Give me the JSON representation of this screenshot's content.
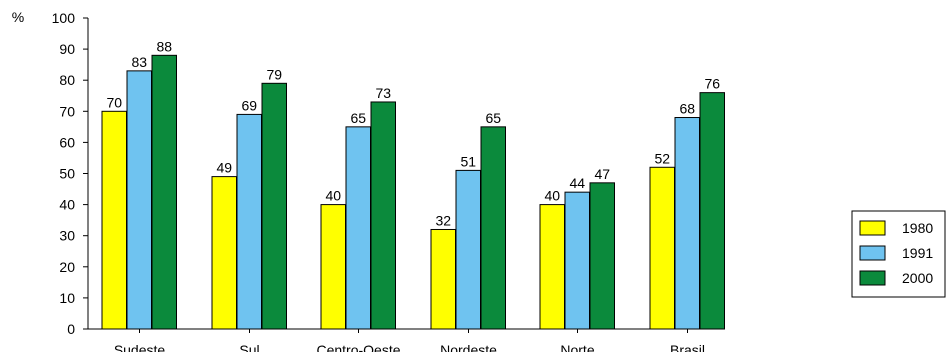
{
  "chart_data": {
    "type": "bar",
    "ylabel": "%",
    "ylim": [
      0,
      100
    ],
    "yticks": [
      0,
      10,
      20,
      30,
      40,
      50,
      60,
      70,
      80,
      90,
      100
    ],
    "grid": false,
    "legend_position": "right",
    "categories": [
      "Sudeste",
      "Sul",
      "Centro-Oeste",
      "Nordeste",
      "Norte",
      "Brasil"
    ],
    "series": [
      {
        "name": "1980",
        "color": "#ffff00",
        "values": [
          70,
          49,
          40,
          32,
          40,
          52
        ]
      },
      {
        "name": "1991",
        "color": "#6fc3f0",
        "values": [
          83,
          69,
          65,
          51,
          44,
          68
        ]
      },
      {
        "name": "2000",
        "color": "#0b8a3c",
        "values": [
          88,
          79,
          73,
          65,
          47,
          76
        ]
      }
    ]
  }
}
